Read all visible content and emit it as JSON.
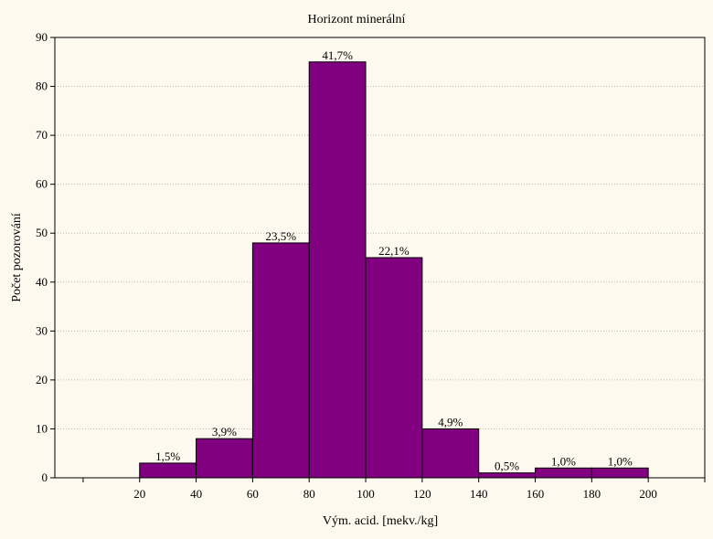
{
  "chart_data": {
    "type": "bar",
    "title": "Horizont minerální",
    "xlabel": "Vým. acid. [mekv./kg]",
    "ylabel": "Počet pozorování",
    "xlim": [
      -10,
      220
    ],
    "ylim": [
      0,
      90
    ],
    "xticks": [
      20,
      40,
      60,
      80,
      100,
      120,
      140,
      160,
      180,
      200
    ],
    "yticks": [
      0,
      10,
      20,
      30,
      40,
      50,
      60,
      70,
      80,
      90
    ],
    "grid": true,
    "bar_color": "#800080",
    "bins": [
      {
        "x0": 20,
        "x1": 40,
        "value": 3,
        "label": "1,5%"
      },
      {
        "x0": 40,
        "x1": 60,
        "value": 8,
        "label": "3,9%"
      },
      {
        "x0": 60,
        "x1": 80,
        "value": 48,
        "label": "23,5%"
      },
      {
        "x0": 80,
        "x1": 100,
        "value": 85,
        "label": "41,7%"
      },
      {
        "x0": 100,
        "x1": 120,
        "value": 45,
        "label": "22,1%"
      },
      {
        "x0": 120,
        "x1": 140,
        "value": 10,
        "label": "4,9%"
      },
      {
        "x0": 140,
        "x1": 160,
        "value": 1,
        "label": "0,5%"
      },
      {
        "x0": 160,
        "x1": 180,
        "value": 2,
        "label": "1,0%"
      },
      {
        "x0": 180,
        "x1": 200,
        "value": 2,
        "label": "1,0%"
      }
    ]
  }
}
